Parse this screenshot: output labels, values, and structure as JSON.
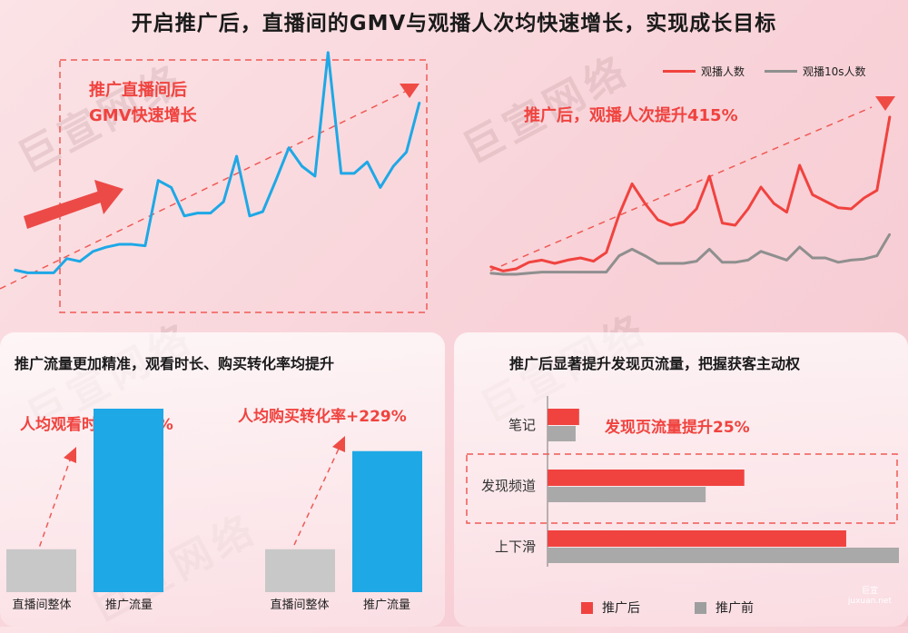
{
  "title": "开启推广后，直播间的GMV与观播人次均快速增长，实现成长目标",
  "watermark": "巨宣网络",
  "logo": {
    "line1": "巨宣",
    "line2": "juxuan.net"
  },
  "colors": {
    "red": "#f0433f",
    "blue": "#1ea8e6",
    "grey": "#8f8f8f",
    "bar_grey": "#c8c8c8"
  },
  "chart_data": [
    {
      "type": "line",
      "annotation_line1": "推广直播间后",
      "annotation_line2": "GMV快速增长",
      "series": [
        {
          "values": [
            12,
            10,
            10,
            10,
            20,
            18,
            25,
            28,
            30,
            30,
            29,
            75,
            70,
            50,
            52,
            52,
            60,
            92,
            50,
            53,
            75,
            98,
            85,
            78,
            165,
            80,
            80,
            88,
            70,
            85,
            95,
            130
          ]
        }
      ],
      "ylim": [
        0,
        170
      ]
    },
    {
      "type": "line",
      "annotation": "推广后，观播人次提升415%",
      "series": [
        {
          "name": "观播人数",
          "values": [
            12,
            8,
            10,
            16,
            18,
            15,
            18,
            20,
            17,
            25,
            60,
            88,
            70,
            55,
            50,
            53,
            65,
            95,
            52,
            50,
            65,
            85,
            70,
            62,
            105,
            78,
            72,
            66,
            65,
            75,
            82,
            150
          ]
        },
        {
          "name": "观播10s人数",
          "values": [
            6,
            5,
            5,
            6,
            7,
            7,
            7,
            7,
            7,
            7,
            22,
            28,
            22,
            15,
            15,
            15,
            17,
            28,
            16,
            16,
            18,
            26,
            22,
            18,
            30,
            20,
            20,
            16,
            18,
            19,
            22,
            42
          ]
        }
      ],
      "ylim": [
        0,
        165
      ]
    },
    {
      "type": "bar",
      "title": "推广流量更加精准，观看时长、购买转化率均提升",
      "groups": [
        {
          "annotation": "人均观看时长+328%",
          "categories": [
            "直播间整体",
            "推广流量"
          ],
          "values": [
            1.0,
            4.28
          ]
        },
        {
          "annotation": "人均购买转化率+229%",
          "categories": [
            "直播间整体",
            "推广流量"
          ],
          "values": [
            1.0,
            3.29
          ]
        }
      ]
    },
    {
      "type": "bar",
      "orientation": "horizontal",
      "title": "推广后显著提升发现页流量，把握获客主动权",
      "annotation": "发现页流量提升25%",
      "categories": [
        "笔记",
        "发现频道",
        "上下滑"
      ],
      "series": [
        {
          "name": "推广后",
          "values": [
            9,
            56,
            85
          ]
        },
        {
          "name": "推广前",
          "values": [
            8,
            45,
            100
          ]
        }
      ],
      "xlim": [
        0,
        100
      ]
    }
  ]
}
